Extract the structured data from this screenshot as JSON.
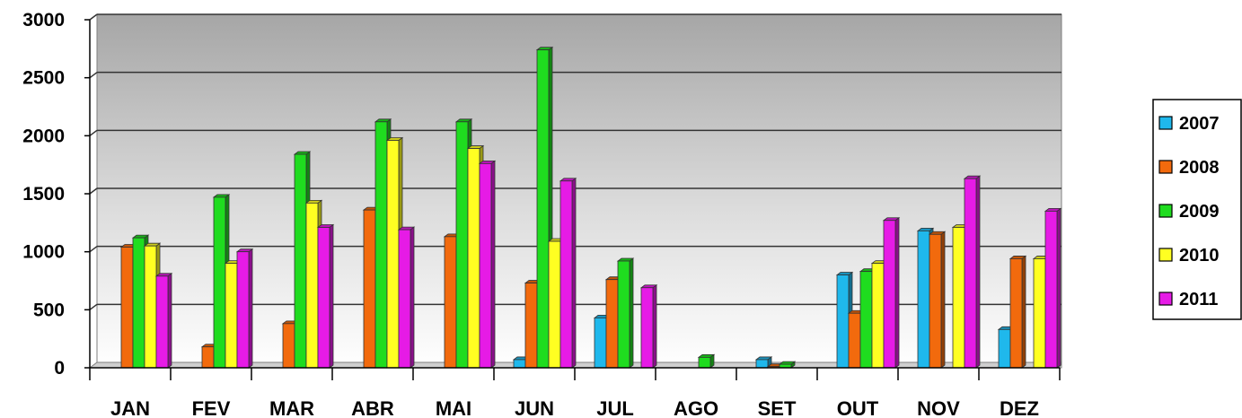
{
  "chart_data": {
    "type": "bar",
    "title": "",
    "xlabel": "",
    "ylabel": "",
    "ylim": [
      0,
      3000
    ],
    "yticks": [
      0,
      500,
      1000,
      1500,
      2000,
      2500,
      3000
    ],
    "grid": true,
    "legend_position": "right",
    "categories": [
      "JAN",
      "FEV",
      "MAR",
      "ABR",
      "MAI",
      "JUN",
      "JUL",
      "AGO",
      "SET",
      "OUT",
      "NOV",
      "DEZ"
    ],
    "series": [
      {
        "name": "2007",
        "color": "#1fb8ec",
        "values": [
          0,
          0,
          0,
          0,
          0,
          70,
          430,
          0,
          70,
          800,
          1180,
          330
        ]
      },
      {
        "name": "2008",
        "color": "#f26a0d",
        "values": [
          1040,
          180,
          380,
          1360,
          1130,
          730,
          760,
          0,
          10,
          470,
          1150,
          940
        ]
      },
      {
        "name": "2009",
        "color": "#1fdc1f",
        "values": [
          1120,
          1470,
          1840,
          2120,
          2120,
          2740,
          920,
          90,
          30,
          830,
          0,
          0
        ]
      },
      {
        "name": "2010",
        "color": "#ffff22",
        "values": [
          1050,
          900,
          1420,
          1960,
          1890,
          1090,
          0,
          0,
          0,
          900,
          1210,
          940
        ]
      },
      {
        "name": "2011",
        "color": "#e61be6",
        "values": [
          790,
          1000,
          1210,
          1190,
          1760,
          1610,
          690,
          0,
          0,
          1270,
          1630,
          1350
        ]
      }
    ]
  }
}
